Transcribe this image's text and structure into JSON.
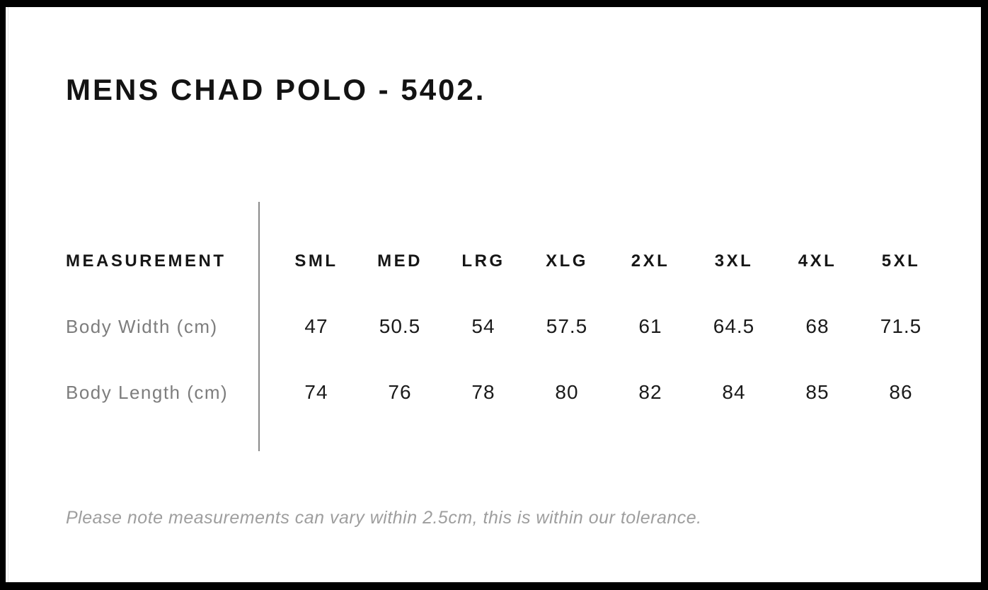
{
  "page": {
    "title": "MENS CHAD POLO - 5402."
  },
  "size_chart": {
    "measurement_header": "MEASUREMENT",
    "sizes": [
      "SML",
      "MED",
      "LRG",
      "XLG",
      "2XL",
      "3XL",
      "4XL",
      "5XL"
    ],
    "rows": [
      {
        "label": "Body Width (cm)",
        "values": [
          "47",
          "50.5",
          "54",
          "57.5",
          "61",
          "64.5",
          "68",
          "71.5"
        ]
      },
      {
        "label": "Body Length (cm)",
        "values": [
          "74",
          "76",
          "78",
          "80",
          "82",
          "84",
          "85",
          "86"
        ]
      }
    ]
  },
  "footer": {
    "note": "Please note measurements can vary within 2.5cm, this is within our tolerance."
  },
  "colors": {
    "frame": "#000000",
    "background": "#ffffff",
    "heading_text": "#131313",
    "value_text": "#1a1a1a",
    "row_label_text": "#7d7d7d",
    "note_text": "#9e9e9e",
    "divider_line": "#8a8a8a"
  }
}
